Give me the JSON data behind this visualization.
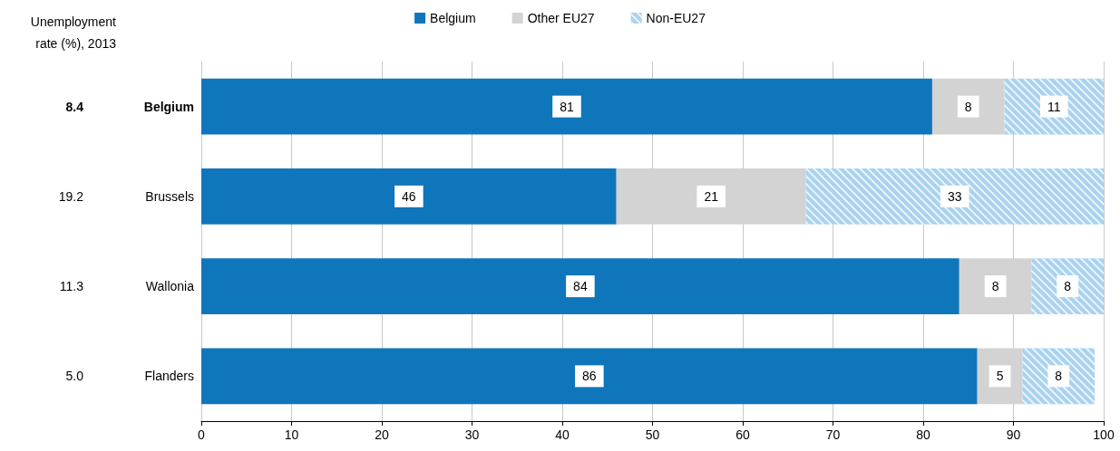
{
  "chart_data": {
    "type": "bar",
    "orientation": "horizontal",
    "stacked": true,
    "categories": [
      "Belgium",
      "Brussels",
      "Wallonia",
      "Flanders"
    ],
    "series": [
      {
        "name": "Belgium",
        "color": "#0f76bc",
        "values": [
          81,
          46,
          84,
          86
        ]
      },
      {
        "name": "Other EU27",
        "color": "#d3d3d4",
        "values": [
          8,
          21,
          8,
          5
        ]
      },
      {
        "name": "Non-EU27",
        "color": "#a9d2ef",
        "values": [
          11,
          33,
          8,
          8
        ]
      }
    ],
    "xlim": [
      0,
      100
    ],
    "xticks": [
      0,
      10,
      20,
      30,
      40,
      50,
      60,
      70,
      80,
      90,
      100
    ],
    "grid": "x",
    "legend": "top",
    "data_labels": true,
    "annotations": [
      "Unemployment rate (%), 2013",
      "8.4",
      "19.2",
      "11.3",
      "5.0"
    ]
  }
}
